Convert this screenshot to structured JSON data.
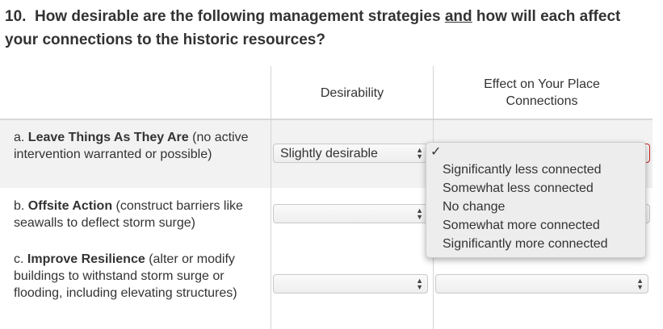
{
  "question": {
    "number": "10.",
    "text_before": "How desirable are the following management strategies",
    "underlined": "and",
    "text_after": "how will each affect your connections to the historic resources?"
  },
  "columns": {
    "desirability": "Desirability",
    "effect": "Effect on Your Place Connections"
  },
  "rows": [
    {
      "letter": "a.",
      "title": "Leave Things As They Are",
      "desc": "(no active intervention warranted or possible)",
      "desirability": "Slightly desirable",
      "effect": ""
    },
    {
      "letter": "b.",
      "title": "Offsite Action",
      "desc": "(construct barriers like seawalls to deflect storm surge)",
      "desirability": "",
      "effect": ""
    },
    {
      "letter": "c.",
      "title": "Improve Resilience",
      "desc": "(alter or modify buildings to withstand storm surge or flooding, including elevating structures)",
      "desirability": "",
      "effect": ""
    }
  ],
  "dropdown": {
    "checkmark": "✓",
    "options": [
      "Significantly less connected",
      "Somewhat less connected",
      "No change",
      "Somewhat more connected",
      "Significantly more connected"
    ]
  },
  "colors": {
    "error_border": "#cc2222",
    "row_highlight": "#f2f2f2"
  }
}
